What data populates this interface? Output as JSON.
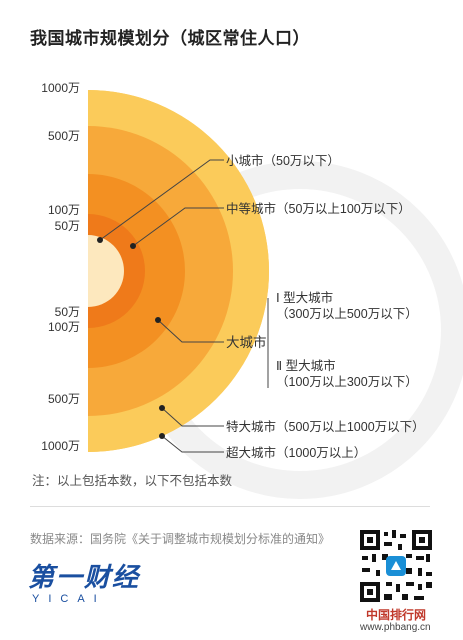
{
  "title": "我国城市规模划分（城区常住人口）",
  "axis_labels": [
    "1000万",
    "500万",
    "100万",
    "50万",
    "50万",
    "100万",
    "500万",
    "1000万"
  ],
  "labels": {
    "small": "小城市（50万以下）",
    "medium": "中等城市（50万以上100万以下）",
    "type1_name": "Ⅰ 型大城市",
    "type1_range": "（300万以上500万以下）",
    "large": "大城市",
    "type2_name": "Ⅱ 型大城市",
    "type2_range": "（100万以上300万以下）",
    "megalarge": "特大城市（500万以上1000万以下）",
    "super": "超大城市（1000万以上）"
  },
  "note": "注：以上包括本数，以下不包括本数",
  "source": "数据来源：国务院《关于调整城市规模划分标准的通知》",
  "brand": {
    "main": "第一财经",
    "sub": "YICAI"
  },
  "watermark": {
    "name": "中国排行网",
    "url": "www.phbang.cn"
  },
  "colors": {
    "super": "#FBCB5A",
    "megalarge": "#F7A93A",
    "large": "#F39022",
    "medium": "#EF7A1A",
    "small": "#FDE8BE",
    "brand": "#1A4FA0"
  },
  "icons": [
    "qr-code-icon",
    "yicai-logo-icon"
  ]
}
